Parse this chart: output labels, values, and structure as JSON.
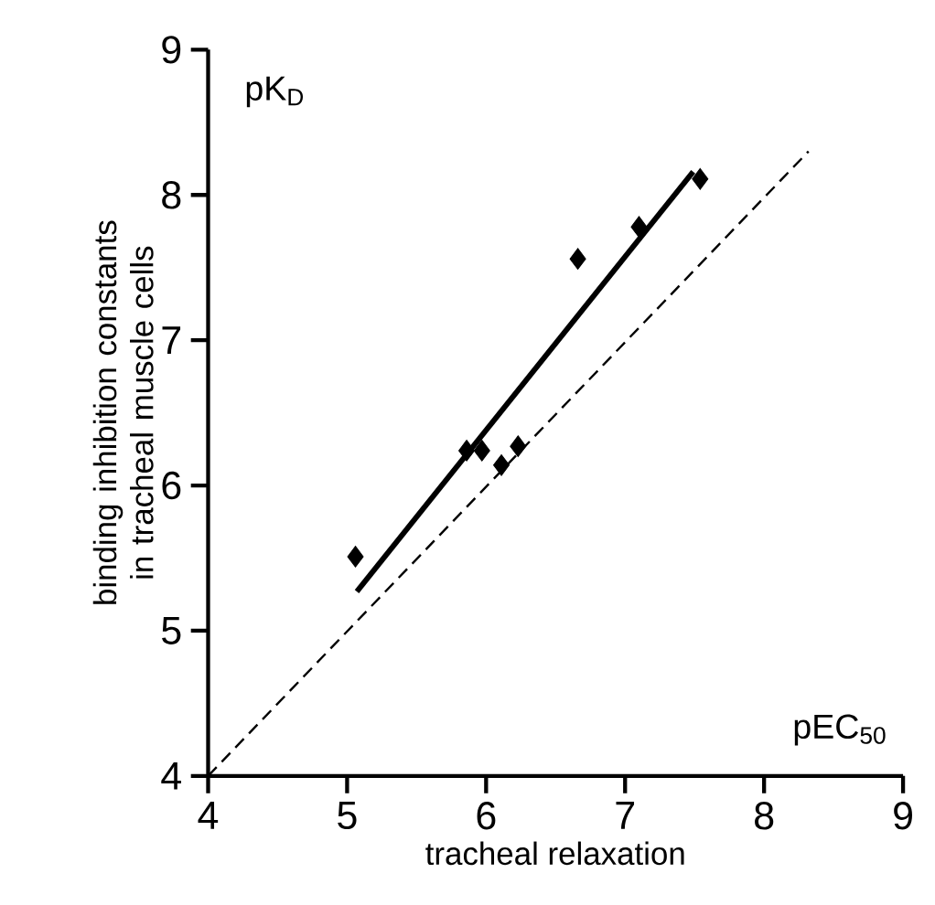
{
  "chart_data": {
    "type": "scatter",
    "xlabel": "tracheal relaxation",
    "ylabel": "binding inhibition constants in tracheal muscle cells",
    "annotations": [
      "pK$_{D}$",
      "pEC$_{50}$"
    ],
    "series": [
      {
        "color": "#000000",
        "marker": "diamond",
        "x": [
          5.06,
          5.86,
          5.97,
          6.11,
          6.23,
          6.66,
          7.1,
          7.54
        ],
        "values": [
          5.51,
          6.24,
          6.24,
          6.14,
          6.27,
          7.56,
          7.78,
          8.11
        ]
      },
      {
        "type": "line",
        "color": "#000000",
        "line_style": "solid",
        "x": [
          5.07,
          7.49
        ],
        "values": [
          5.27,
          8.16
        ]
      },
      {
        "type": "line",
        "color": "#000000",
        "line_style": "dashed",
        "x": [
          4,
          8.32
        ],
        "values": [
          4,
          8.3
        ]
      }
    ],
    "xlim": [
      4,
      9
    ],
    "ylim": [
      4,
      9
    ],
    "xticks": [
      4,
      5,
      6,
      7,
      8,
      9
    ],
    "yticks": [
      4,
      5,
      6,
      7,
      8,
      9
    ]
  }
}
